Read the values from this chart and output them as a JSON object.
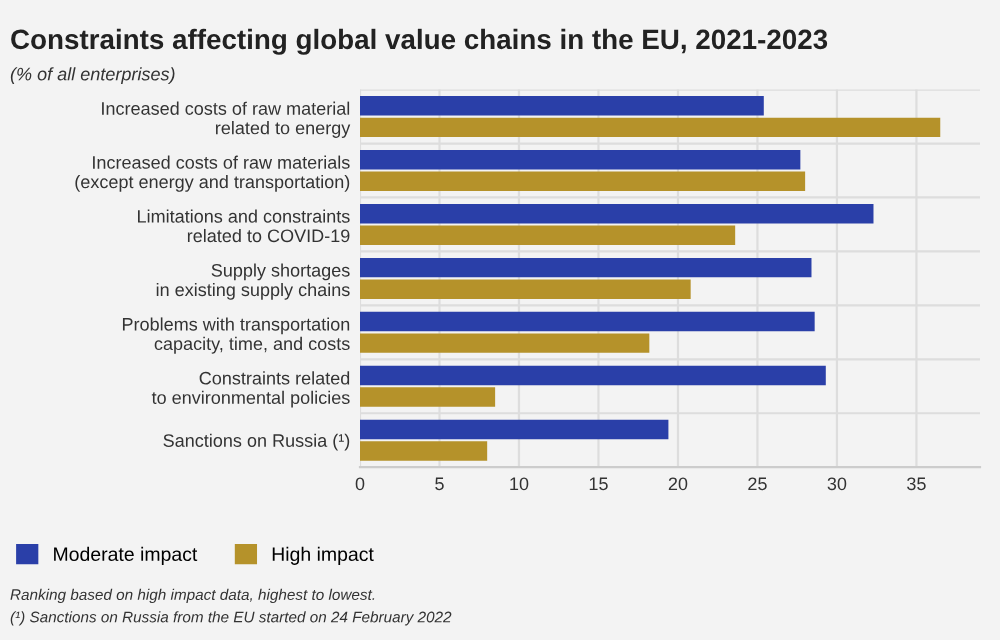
{
  "chart_data": {
    "type": "bar",
    "orientation": "horizontal",
    "title": "Constraints affecting global value chains in the EU, 2021-2023",
    "subtitle": "(% of all enterprises)",
    "categories": [
      "Increased costs of raw material\nrelated to energy",
      "Increased costs of raw materials\n(except energy and transportation)",
      "Limitations and constraints\nrelated to COVID-19",
      "Supply shortages\nin existing supply chains",
      "Problems with transportation\ncapacity, time, and costs",
      "Constraints related\nto environmental policies",
      "Sanctions on Russia (¹)"
    ],
    "series": [
      {
        "name": "Moderate impact",
        "color": "#2a3fa8",
        "values": [
          25.4,
          27.7,
          32.3,
          28.4,
          28.6,
          29.3,
          19.4
        ]
      },
      {
        "name": "High impact",
        "color": "#b5922a",
        "values": [
          36.5,
          28.0,
          23.6,
          20.8,
          18.2,
          8.5,
          8.0
        ]
      }
    ],
    "xlim": [
      0,
      39
    ],
    "xticks": [
      0,
      5,
      10,
      15,
      20,
      25,
      30,
      35
    ],
    "grid": true,
    "legend": "bottom left",
    "annotations": [
      "Ranking based on high impact data, highest to lowest.",
      "(¹) Sanctions on Russia from the EU started on 24 February 2022"
    ]
  }
}
